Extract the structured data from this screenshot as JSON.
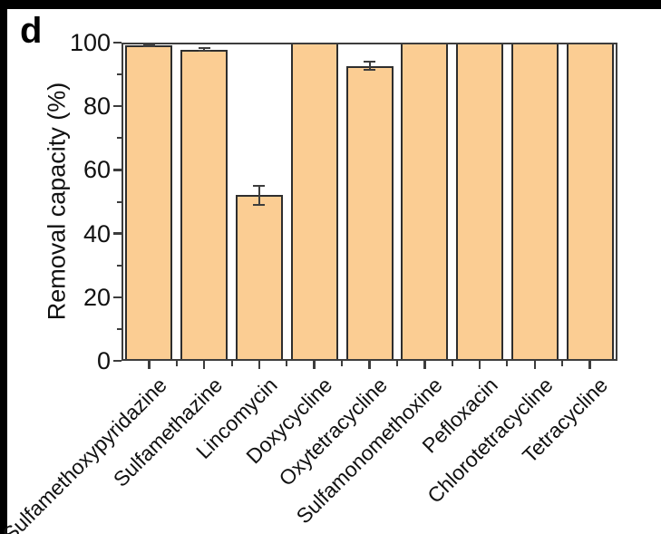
{
  "panel_label": "d",
  "colors": {
    "bar_fill": "#fbcd93",
    "bar_border": "#2e2e2e",
    "axis_frame": "#3d3d3d",
    "text": "#111111",
    "outer_border": "#000000",
    "background": "#ffffff"
  },
  "chart_data": {
    "type": "bar",
    "title": "",
    "xlabel": "",
    "ylabel": "Removal capacity (%)",
    "ylim": [
      0,
      100
    ],
    "yticks": [
      0,
      20,
      40,
      60,
      80,
      100
    ],
    "minor_ytick_step": 10,
    "grid": false,
    "legend": false,
    "bar_orientation": "vertical",
    "categories": [
      "Sulfamethoxypyridazine",
      "Sulfamethazine",
      "Lincomycin",
      "Doxycycline",
      "Oxytetracycline",
      "Sulfamonomethoxine",
      "Pefloxacin",
      "Chlorotetracycline",
      "Tetracycline"
    ],
    "values": [
      99.2,
      97.8,
      52,
      100,
      92.7,
      100,
      100,
      100,
      100
    ],
    "errors": [
      0.3,
      0.4,
      3,
      0,
      1.3,
      0,
      0,
      0,
      0
    ]
  }
}
